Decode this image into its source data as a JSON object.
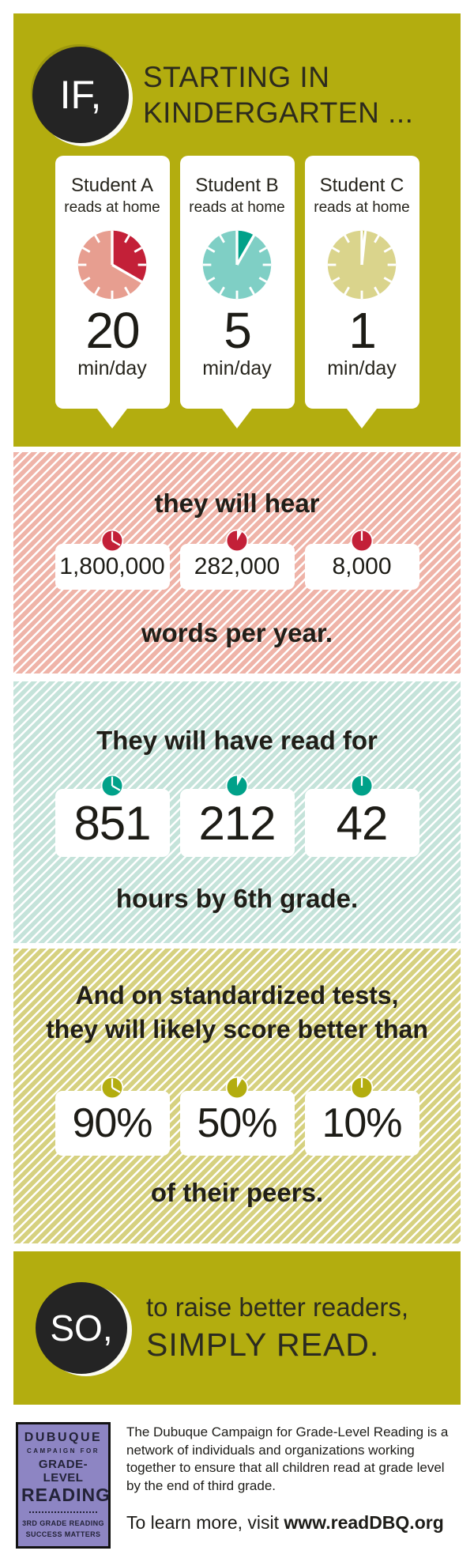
{
  "colors": {
    "olive": "#b3ad0f",
    "olive_stripe_base": "#d6d180",
    "pink_stripe_base": "#efb4a9",
    "teal_stripe_base": "#c5e3da",
    "red": "#c32038",
    "teal": "#00a189",
    "olive_icon": "#b3ad0f",
    "badge_black": "#242424",
    "logo_purple": "#8d85c3",
    "text_dark": "#23211a",
    "card_white": "#ffffff"
  },
  "clock_faces": [
    {
      "light": "#e79e90",
      "dark": "#c32038",
      "fraction": 0.3333
    },
    {
      "light": "#7fcfc5",
      "dark": "#00a189",
      "fraction": 0.0833
    },
    {
      "light": "#dad48c",
      "dark": "#b3ad0f",
      "fraction": 0.0167
    }
  ],
  "section_if": {
    "badge": "IF,",
    "heading_line1": "STARTING IN",
    "heading_line2": "KINDERGARTEN ...",
    "students": [
      {
        "name": "Student A",
        "subtitle": "reads at home",
        "minutes": "20",
        "unit": "min/day"
      },
      {
        "name": "Student B",
        "subtitle": "reads at home",
        "minutes": "5",
        "unit": "min/day"
      },
      {
        "name": "Student C",
        "subtitle": "reads at home",
        "minutes": "1",
        "unit": "min/day"
      }
    ]
  },
  "section_words": {
    "heading": "they will hear",
    "values": [
      "1,800,000",
      "282,000",
      "8,000"
    ],
    "caption": "words per year."
  },
  "section_hours": {
    "heading": "They will have read for",
    "values": [
      "851",
      "212",
      "42"
    ],
    "caption": "hours by 6th grade."
  },
  "section_tests": {
    "heading_line1": "And on standardized tests,",
    "heading_line2": "they will likely score better than",
    "values": [
      "90%",
      "50%",
      "10%"
    ],
    "caption": "of their peers."
  },
  "section_so": {
    "badge": "SO,",
    "line1": "to raise better readers,",
    "line2": "SIMPLY READ."
  },
  "footer": {
    "logo": {
      "line1": "DUBUQUE",
      "line2": "CAMPAIGN FOR",
      "line3": "GRADE-LEVEL",
      "line4": "READING",
      "line5": "3RD GRADE READING",
      "line6": "SUCCESS MATTERS"
    },
    "about": "The Dubuque Campaign for Grade-Level Reading is a network of individuals and organizations working together to ensure that all children read at grade level by the end of third grade.",
    "cta_prefix": "To learn more, visit ",
    "cta_link": "www.readDBQ.org"
  },
  "chart_data": {
    "type": "table",
    "title": "IF, starting in kindergarten ... SO, to raise better readers, SIMPLY READ.",
    "categories": [
      "Student A",
      "Student B",
      "Student C"
    ],
    "series": [
      {
        "name": "Reading at home (min/day)",
        "values": [
          20,
          5,
          1
        ]
      },
      {
        "name": "Words heard per year",
        "values": [
          1800000,
          282000,
          8000
        ]
      },
      {
        "name": "Hours read by 6th grade",
        "values": [
          851,
          212,
          42
        ]
      },
      {
        "name": "Score better than % of peers on standardized tests",
        "values": [
          90,
          50,
          10
        ]
      }
    ]
  }
}
